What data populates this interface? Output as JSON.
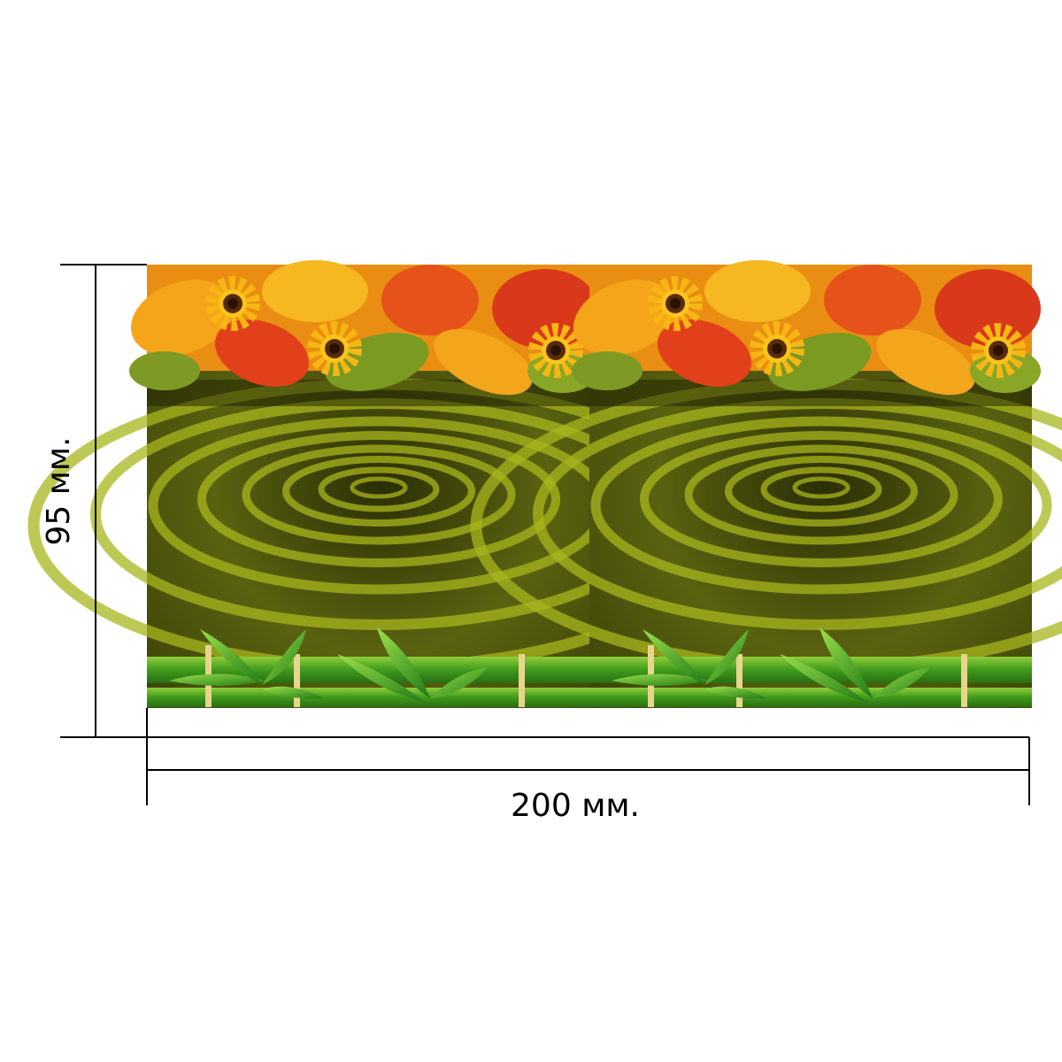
{
  "labels": {
    "height": "95 мм.",
    "width": "200 мм."
  }
}
